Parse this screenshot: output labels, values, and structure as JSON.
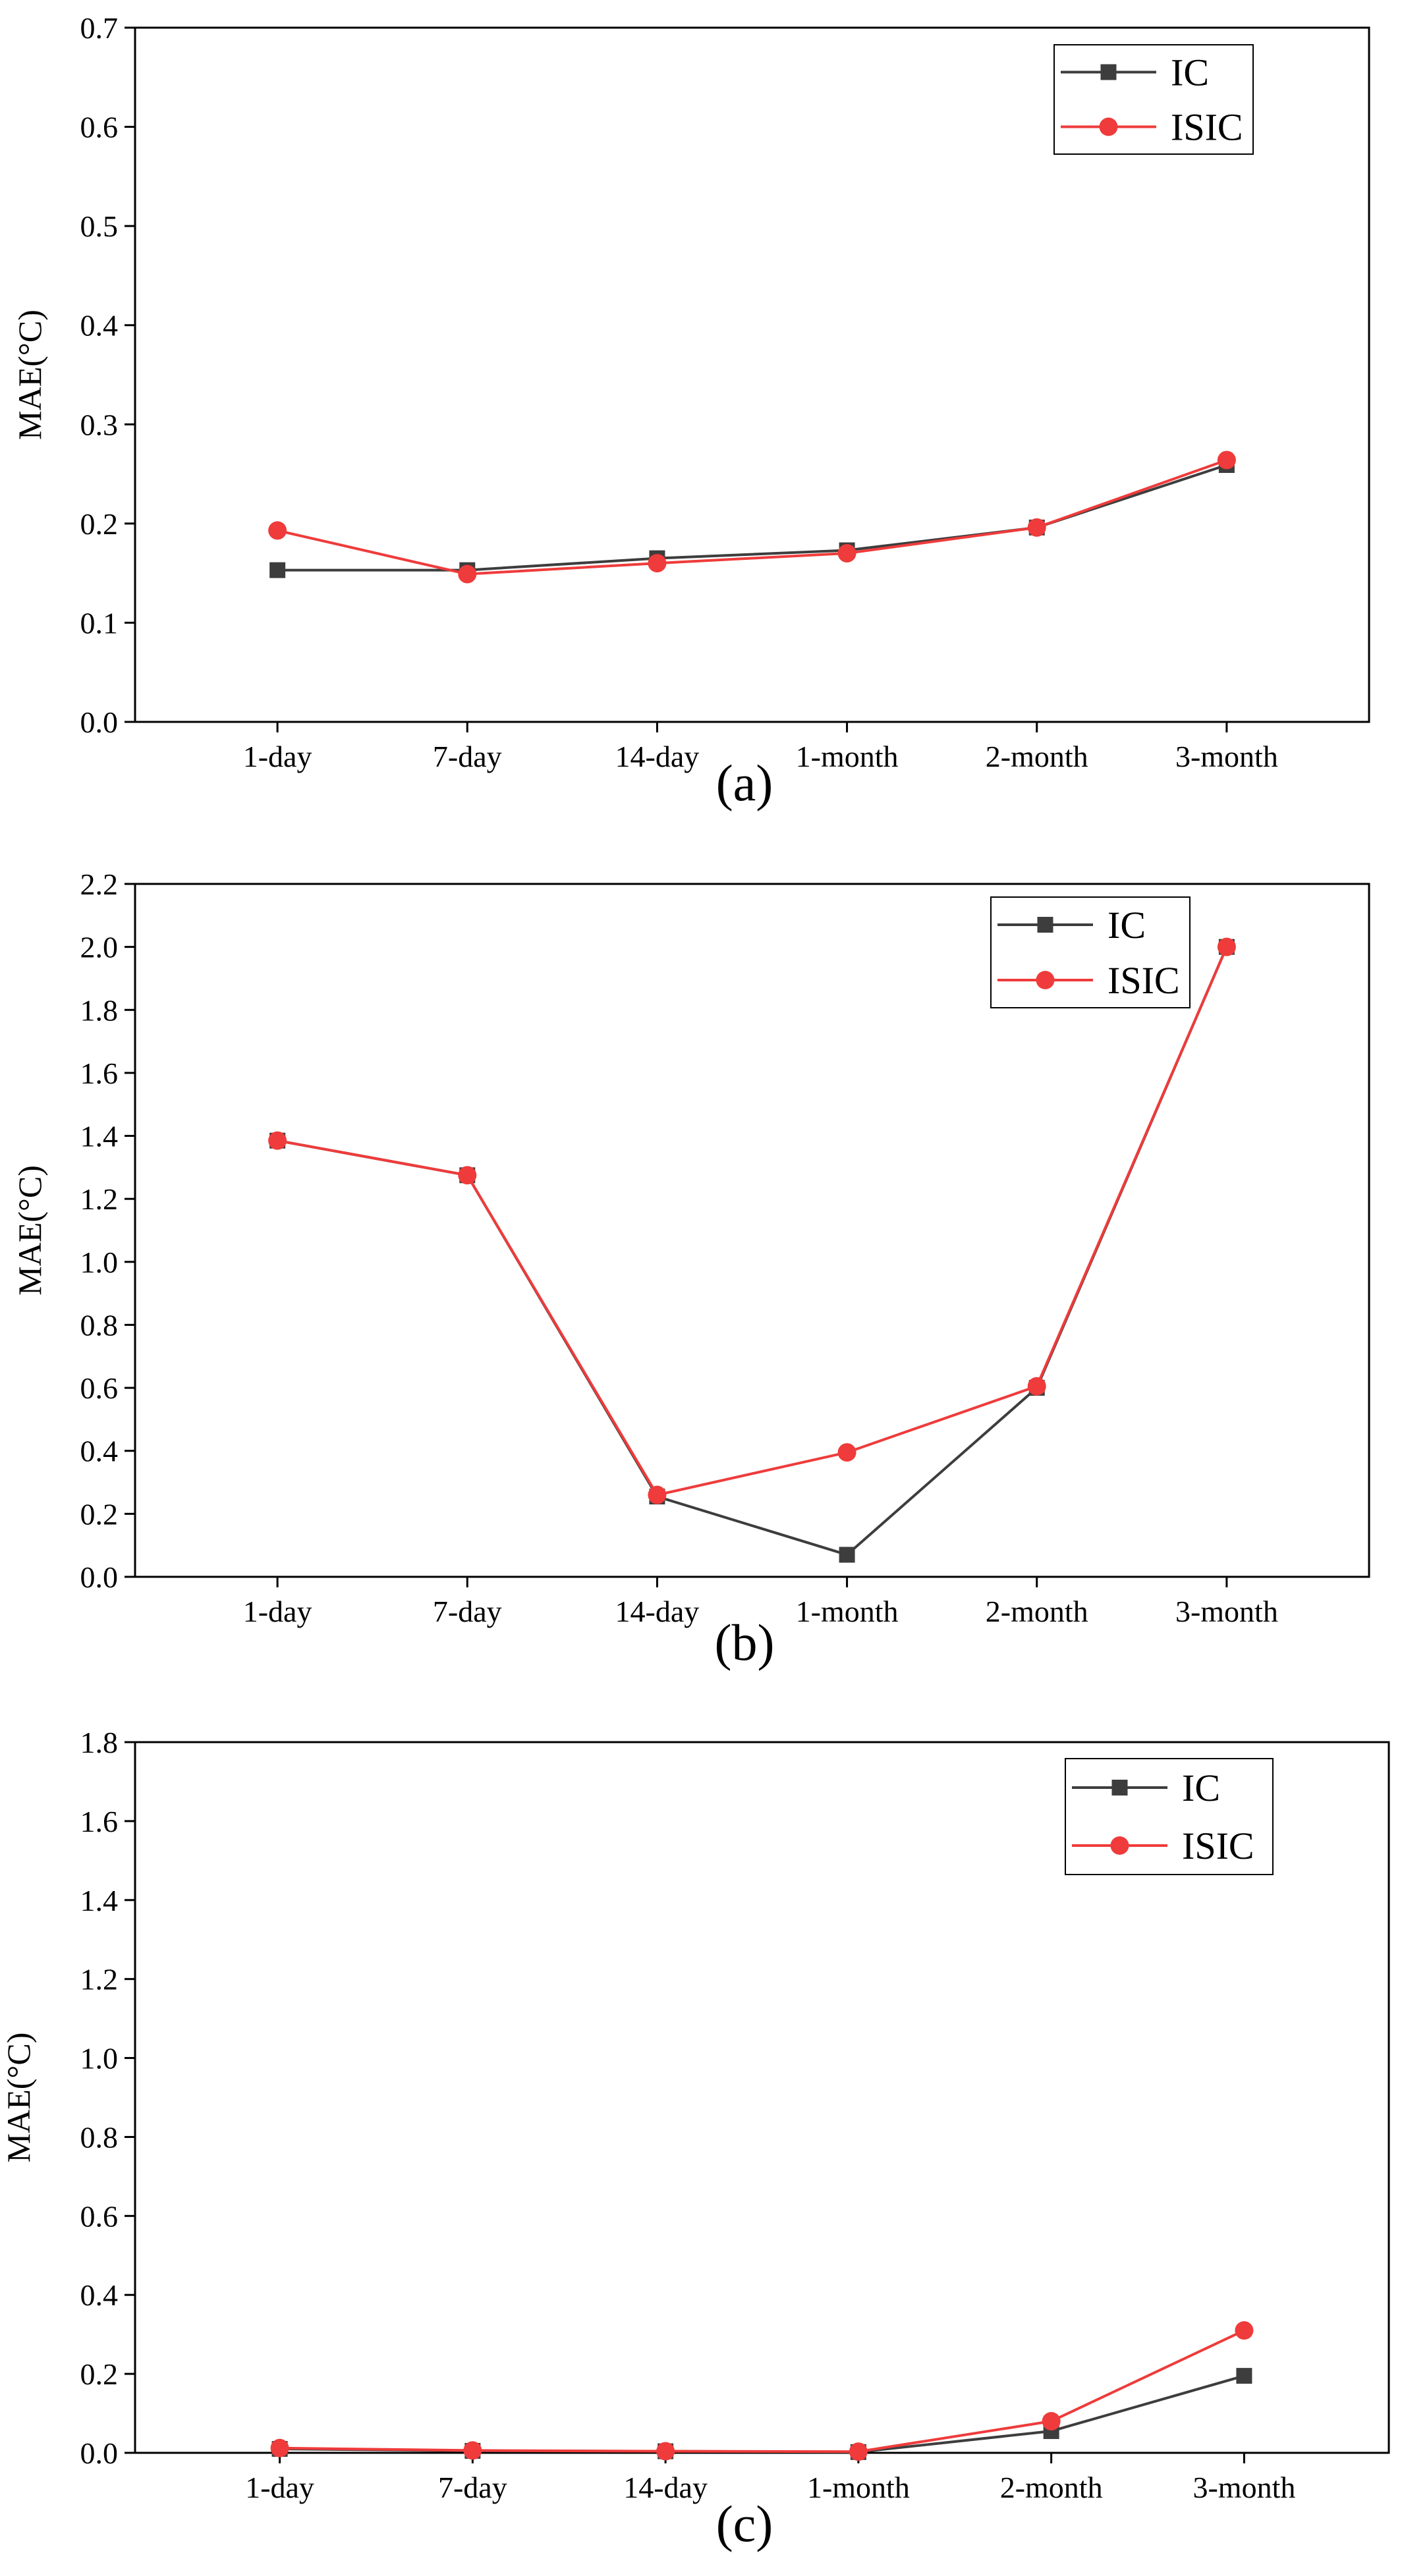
{
  "colors": {
    "ic": "#3d3d3d",
    "isic": "#ef3b3b",
    "axis": "#000000"
  },
  "chart_data": [
    {
      "type": "line",
      "panel_label": "(a)",
      "ylabel": "MAE(°C)",
      "xlabel": "",
      "categories": [
        "1-day",
        "7-day",
        "14-day",
        "1-month",
        "2-month",
        "3-month"
      ],
      "ylim": [
        0,
        0.7
      ],
      "yticks": [
        "0.0",
        "0.1",
        "0.2",
        "0.3",
        "0.4",
        "0.5",
        "0.6",
        "0.7"
      ],
      "legend_position": "top-right",
      "series": [
        {
          "name": "IC",
          "marker": "square",
          "color": "#3d3d3d",
          "values": [
            0.153,
            0.153,
            0.165,
            0.173,
            0.196,
            0.259
          ]
        },
        {
          "name": "ISIC",
          "marker": "circle",
          "color": "#ef3b3b",
          "values": [
            0.193,
            0.149,
            0.16,
            0.17,
            0.196,
            0.264
          ]
        }
      ]
    },
    {
      "type": "line",
      "panel_label": "(b)",
      "ylabel": "MAE(°C)",
      "xlabel": "",
      "categories": [
        "1-day",
        "7-day",
        "14-day",
        "1-month",
        "2-month",
        "3-month"
      ],
      "ylim": [
        0,
        2.2
      ],
      "yticks": [
        "0.0",
        "0.2",
        "0.4",
        "0.6",
        "0.8",
        "1.0",
        "1.2",
        "1.4",
        "1.6",
        "1.8",
        "2.0",
        "2.2"
      ],
      "legend_position": "top-right",
      "series": [
        {
          "name": "IC",
          "marker": "square",
          "color": "#3d3d3d",
          "values": [
            1.385,
            1.275,
            0.255,
            0.07,
            0.6,
            2.0
          ]
        },
        {
          "name": "ISIC",
          "marker": "circle",
          "color": "#ef3b3b",
          "values": [
            1.385,
            1.275,
            0.26,
            0.395,
            0.605,
            2.0
          ]
        }
      ]
    },
    {
      "type": "line",
      "panel_label": "(c)",
      "ylabel": "MAE(°C)",
      "xlabel": "",
      "categories": [
        "1-day",
        "7-day",
        "14-day",
        "1-month",
        "2-month",
        "3-month"
      ],
      "ylim": [
        0,
        1.8
      ],
      "yticks": [
        "0.0",
        "0.2",
        "0.4",
        "0.6",
        "0.8",
        "1.0",
        "1.2",
        "1.4",
        "1.6",
        "1.8"
      ],
      "legend_position": "top-right",
      "series": [
        {
          "name": "IC",
          "marker": "square",
          "color": "#3d3d3d",
          "values": [
            0.01,
            0.005,
            0.004,
            0.002,
            0.055,
            0.195
          ]
        },
        {
          "name": "ISIC",
          "marker": "circle",
          "color": "#ef3b3b",
          "values": [
            0.012,
            0.006,
            0.004,
            0.003,
            0.08,
            0.31
          ]
        }
      ]
    }
  ]
}
